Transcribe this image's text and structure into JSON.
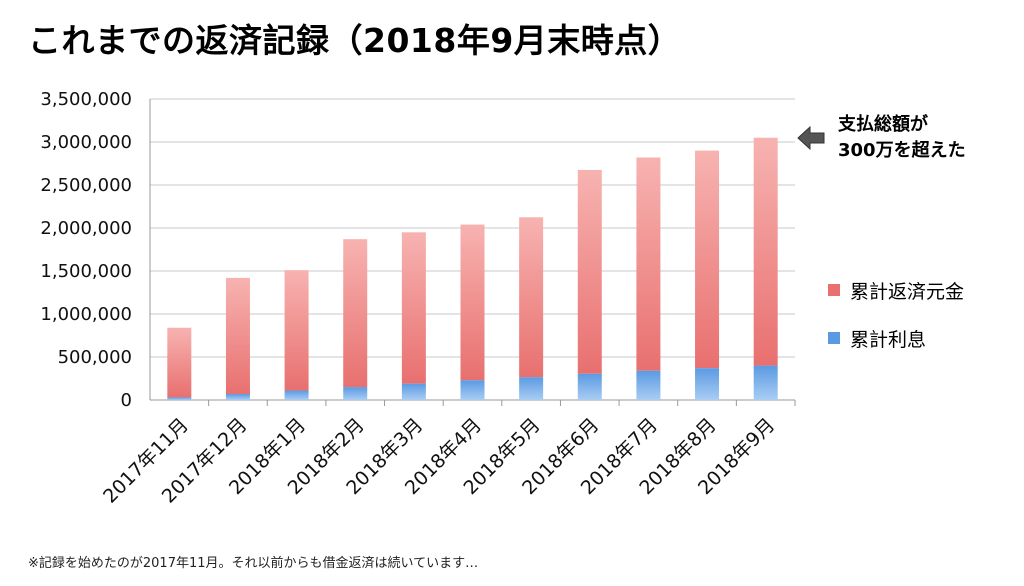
{
  "title": "これまでの返済記録（2018年9月末時点）",
  "note": "※記録を始めたのが2017年11月。それ以前からも借金返済は続いています…",
  "callout": {
    "line1": "支払総額が",
    "line2": "300万を超えた"
  },
  "legend": {
    "principal_label": "累計返済元金",
    "interest_label": "累計利息"
  },
  "colors": {
    "principal": "#e8706f",
    "principal_light": "#f7b3b1",
    "interest": "#5b9ae2",
    "interest_light": "#a9cdf3"
  },
  "chart_data": {
    "type": "bar",
    "stacked": true,
    "categories": [
      "2017年11月",
      "2017年12月",
      "2018年1月",
      "2018年2月",
      "2018年3月",
      "2018年4月",
      "2018年5月",
      "2018年6月",
      "2018年7月",
      "2018年8月",
      "2018年9月"
    ],
    "series": [
      {
        "name": "累計利息",
        "values": [
          30000,
          70000,
          110000,
          150000,
          190000,
          230000,
          265000,
          305000,
          340000,
          370000,
          400000
        ]
      },
      {
        "name": "累計返済元金",
        "values": [
          810000,
          1350000,
          1400000,
          1720000,
          1760000,
          1810000,
          1860000,
          2370000,
          2480000,
          2530000,
          2650000
        ]
      }
    ],
    "y_ticks": [
      "0",
      "500,000",
      "1,000,000",
      "1,500,000",
      "2,000,000",
      "2,500,000",
      "3,000,000",
      "3,500,000"
    ],
    "ylim": [
      0,
      3500000
    ],
    "xlabel": "",
    "ylabel": "",
    "grid": true,
    "legend_position": "right"
  }
}
